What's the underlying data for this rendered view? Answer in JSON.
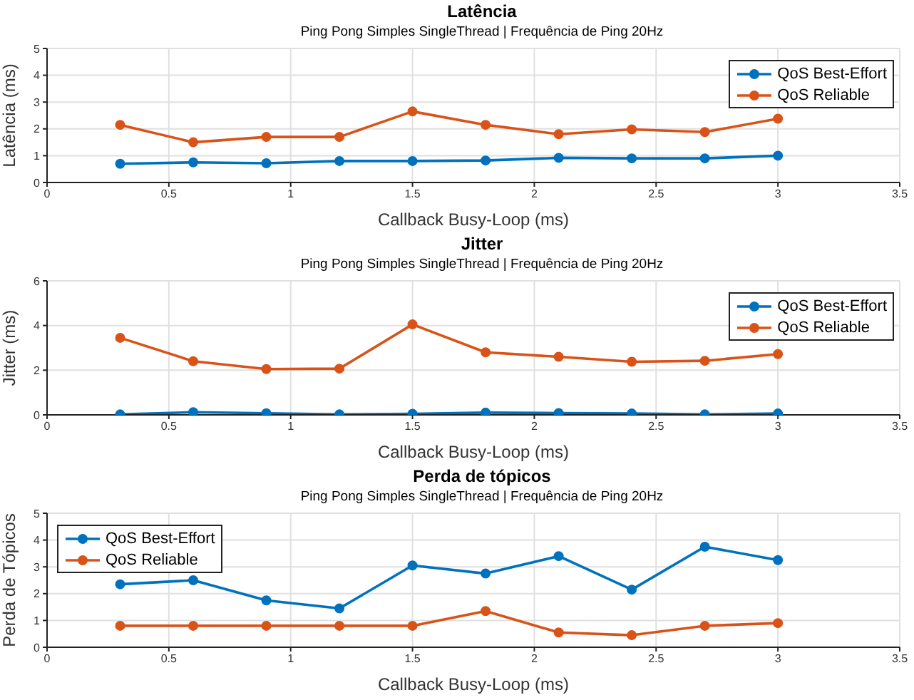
{
  "chart_data": [
    {
      "type": "line",
      "title": "Latência",
      "subtitle": "Ping Pong Simples SingleThread | Frequência de Ping 20Hz",
      "xlabel": "Callback Busy-Loop (ms)",
      "ylabel": "Latência (ms)",
      "x": [
        0.3,
        0.6,
        0.9,
        1.2,
        1.5,
        1.8,
        2.1,
        2.4,
        2.7,
        3.0
      ],
      "xlim": [
        0,
        3.5
      ],
      "xticks": [
        0,
        0.5,
        1,
        1.5,
        2,
        2.5,
        3,
        3.5
      ],
      "ylim": [
        0,
        5
      ],
      "yticks": [
        0,
        1,
        2,
        3,
        4,
        5
      ],
      "grid": true,
      "legend": "top right",
      "marker": "circle",
      "line_style": "solid",
      "series": [
        {
          "name": "QoS Best-Effort",
          "color": "#0072bd",
          "values": [
            0.7,
            0.75,
            0.72,
            0.8,
            0.8,
            0.82,
            0.92,
            0.9,
            0.9,
            1.0
          ]
        },
        {
          "name": "QoS Reliable",
          "color": "#d95319",
          "values": [
            2.15,
            1.5,
            1.7,
            1.7,
            2.65,
            2.15,
            1.8,
            1.98,
            1.88,
            2.38
          ]
        }
      ]
    },
    {
      "type": "line",
      "title": "Jitter",
      "subtitle": "Ping Pong Simples SingleThread | Frequência de Ping 20Hz",
      "xlabel": "Callback Busy-Loop (ms)",
      "ylabel": "Jitter (ms)",
      "x": [
        0.3,
        0.6,
        0.9,
        1.2,
        1.5,
        1.8,
        2.1,
        2.4,
        2.7,
        3.0
      ],
      "xlim": [
        0,
        3.5
      ],
      "xticks": [
        0,
        0.5,
        1,
        1.5,
        2,
        2.5,
        3,
        3.5
      ],
      "ylim": [
        0,
        6
      ],
      "yticks": [
        0,
        2,
        4,
        6
      ],
      "grid": true,
      "legend": "top right",
      "marker": "circle",
      "line_style": "solid",
      "series": [
        {
          "name": "QoS Best-Effort",
          "color": "#0072bd",
          "values": [
            0.02,
            0.12,
            0.07,
            0.02,
            0.05,
            0.1,
            0.08,
            0.06,
            0.02,
            0.06
          ]
        },
        {
          "name": "QoS Reliable",
          "color": "#d95319",
          "values": [
            3.45,
            2.4,
            2.05,
            2.07,
            4.05,
            2.8,
            2.6,
            2.38,
            2.42,
            2.72
          ]
        }
      ]
    },
    {
      "type": "line",
      "title": "Perda de tópicos",
      "subtitle": "Ping Pong Simples SingleThread | Frequência de Ping 20Hz",
      "xlabel": "Callback Busy-Loop (ms)",
      "ylabel": "Perda de Tópicos",
      "x": [
        0.3,
        0.6,
        0.9,
        1.2,
        1.5,
        1.8,
        2.1,
        2.4,
        2.7,
        3.0
      ],
      "xlim": [
        0,
        3.5
      ],
      "xticks": [
        0,
        0.5,
        1,
        1.5,
        2,
        2.5,
        3,
        3.5
      ],
      "ylim": [
        0,
        5
      ],
      "yticks": [
        0,
        1,
        2,
        3,
        4,
        5
      ],
      "grid": true,
      "legend": "top left",
      "marker": "circle",
      "line_style": "solid",
      "series": [
        {
          "name": "QoS Best-Effort",
          "color": "#0072bd",
          "values": [
            2.35,
            2.5,
            1.75,
            1.45,
            3.05,
            2.75,
            3.4,
            2.15,
            3.75,
            3.25
          ]
        },
        {
          "name": "QoS Reliable",
          "color": "#d95319",
          "values": [
            0.8,
            0.8,
            0.8,
            0.8,
            0.8,
            1.35,
            0.55,
            0.45,
            0.8,
            0.9
          ]
        }
      ]
    }
  ]
}
